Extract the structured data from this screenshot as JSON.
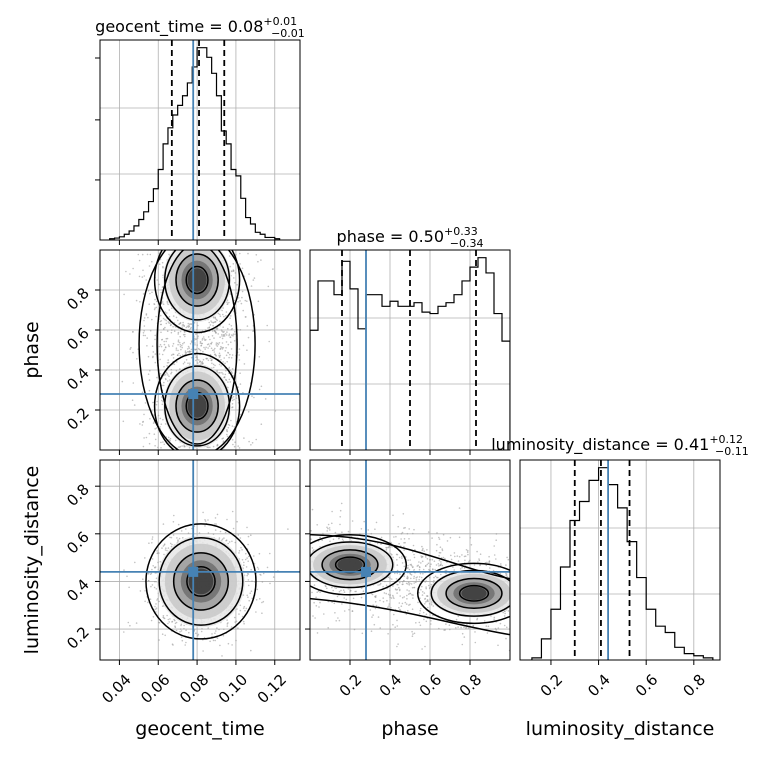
{
  "chart_data": {
    "type": "corner",
    "parameters": [
      "geocent_time",
      "phase",
      "luminosity_distance"
    ],
    "truths": {
      "geocent_time": 0.078,
      "phase": 0.28,
      "luminosity_distance": 0.44
    },
    "ranges": {
      "geocent_time": [
        0.03,
        0.133
      ],
      "phase": [
        0.0,
        1.0
      ],
      "luminosity_distance": [
        0.07,
        0.91
      ]
    },
    "ticks": {
      "geocent_time": [
        "0.04",
        "0.06",
        "0.08",
        "0.10",
        "0.12"
      ],
      "phase": [
        "0.2",
        "0.4",
        "0.6",
        "0.8"
      ],
      "luminosity_distance": [
        "0.2",
        "0.4",
        "0.6",
        "0.8"
      ]
    },
    "tick_values": {
      "geocent_time": [
        0.04,
        0.06,
        0.08,
        0.1,
        0.12
      ],
      "phase": [
        0.2,
        0.4,
        0.6,
        0.8
      ],
      "luminosity_distance": [
        0.2,
        0.4,
        0.6,
        0.8
      ]
    },
    "titles": {
      "geocent_time": {
        "base": "geocent_time = 0.08",
        "plus": "+0.01",
        "minus": "−0.01"
      },
      "phase": {
        "base": "phase = 0.50",
        "plus": "+0.33",
        "minus": "−0.34"
      },
      "luminosity_distance": {
        "base": "luminosity_distance = 0.41",
        "plus": "+0.12",
        "minus": "−0.11"
      }
    },
    "quantiles": {
      "geocent_time": [
        0.067,
        0.081,
        0.094
      ],
      "phase": [
        0.16,
        0.5,
        0.83
      ],
      "luminosity_distance": [
        0.3,
        0.41,
        0.53
      ]
    },
    "histograms": {
      "geocent_time": {
        "edges": [
          0.035,
          0.0375,
          0.04,
          0.0425,
          0.045,
          0.0475,
          0.05,
          0.0525,
          0.055,
          0.0575,
          0.06,
          0.0625,
          0.065,
          0.0675,
          0.07,
          0.0725,
          0.075,
          0.0775,
          0.08,
          0.0825,
          0.085,
          0.0875,
          0.09,
          0.0925,
          0.095,
          0.0975,
          0.1,
          0.1025,
          0.105,
          0.1075,
          0.11,
          0.1125,
          0.115,
          0.1175,
          0.12,
          0.1225
        ],
        "counts": [
          2,
          3,
          5,
          9,
          14,
          22,
          32,
          44,
          60,
          80,
          110,
          150,
          175,
          195,
          210,
          225,
          245,
          270,
          300,
          300,
          285,
          260,
          225,
          170,
          150,
          110,
          100,
          65,
          35,
          25,
          12,
          9,
          4,
          4,
          2
        ]
      },
      "phase": {
        "edges": [
          0.0,
          0.04,
          0.08,
          0.12,
          0.16,
          0.2,
          0.24,
          0.28,
          0.32,
          0.36,
          0.4,
          0.44,
          0.48,
          0.52,
          0.56,
          0.6,
          0.64,
          0.68,
          0.72,
          0.76,
          0.8,
          0.84,
          0.88,
          0.92,
          0.96,
          1.0
        ],
        "counts": [
          1.65,
          2.33,
          2.33,
          2.14,
          2.6,
          2.22,
          1.67,
          2.14,
          2.14,
          1.98,
          2.05,
          1.98,
          1.98,
          2.03,
          1.9,
          1.88,
          1.98,
          2.03,
          2.14,
          2.33,
          2.52,
          2.65,
          2.44,
          1.88,
          1.5
        ]
      },
      "luminosity_distance": {
        "edges": [
          0.12,
          0.16,
          0.2,
          0.24,
          0.28,
          0.32,
          0.36,
          0.4,
          0.44,
          0.48,
          0.52,
          0.56,
          0.6,
          0.64,
          0.68,
          0.72,
          0.76,
          0.8,
          0.84,
          0.88
        ],
        "counts": [
          0.1,
          1.0,
          2.4,
          4.4,
          6.6,
          7.5,
          8.5,
          9.1,
          8.3,
          7.2,
          5.6,
          3.9,
          2.4,
          1.6,
          1.3,
          0.6,
          0.3,
          0.2,
          0.1
        ]
      }
    },
    "density_2d": [
      {
        "x": "geocent_time",
        "y": "phase",
        "modes": [
          [
            0.08,
            0.85
          ],
          [
            0.08,
            0.22
          ]
        ],
        "note_shape": "elongated along phase, bimodal"
      },
      {
        "x": "geocent_time",
        "y": "luminosity_distance",
        "modes": [
          [
            0.082,
            0.4
          ]
        ]
      },
      {
        "x": "phase",
        "y": "luminosity_distance",
        "modes": [
          [
            0.2,
            0.47
          ],
          [
            0.82,
            0.35
          ]
        ]
      }
    ]
  }
}
